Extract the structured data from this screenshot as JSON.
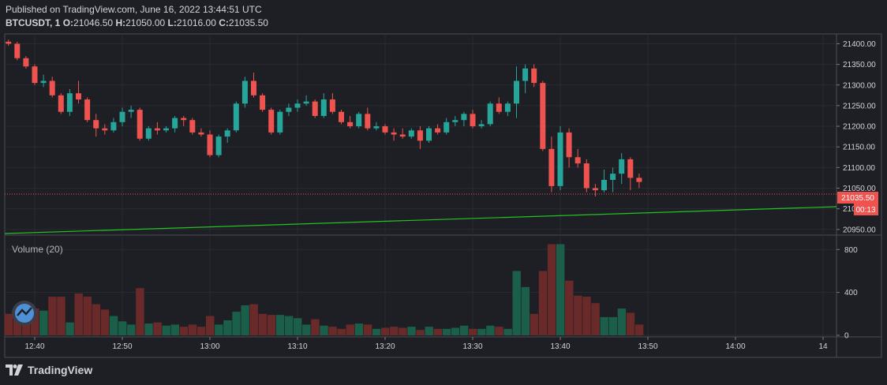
{
  "header": {
    "published": "Published on TradingView.com, June 16, 2022 13:44:51 UTC",
    "symbol": "BTCUSDT, 1",
    "ohlc": {
      "O": "21046.50",
      "H": "21050.00",
      "L": "21016.00",
      "C": "21035.50"
    },
    "o_label": "O:",
    "h_label": "H:",
    "l_label": "L:",
    "c_label": "C:"
  },
  "price_tag": "21035.50",
  "countdown_tag": "00:13",
  "volume_label": "Volume (20)",
  "brand": "TradingView",
  "colors": {
    "up": "#26a69a",
    "down": "#ef5350",
    "up_vol": "#1b5e4a",
    "down_vol": "#6b2a2a",
    "trend": "#22c322",
    "bg": "#1e1f24",
    "grid": "#2a2b31"
  },
  "chart_data": {
    "type": "candlestick",
    "price_ylim": [
      20940,
      21420
    ],
    "price_ticks": [
      "21400.00",
      "21350.00",
      "21300.00",
      "21250.00",
      "21200.00",
      "21150.00",
      "21100.00",
      "21050.00",
      "21000.00",
      "20950.00"
    ],
    "volume_ylim": [
      0,
      920
    ],
    "volume_ticks": [
      "800",
      "400",
      "0"
    ],
    "time_ticks": [
      {
        "label": "12:40",
        "minute": 0
      },
      {
        "label": "12:50",
        "minute": 10
      },
      {
        "label": "13:00",
        "minute": 20
      },
      {
        "label": "13:10",
        "minute": 30
      },
      {
        "label": "13:20",
        "minute": 40
      },
      {
        "label": "13:30",
        "minute": 50
      },
      {
        "label": "13:40",
        "minute": 60
      },
      {
        "label": "13:50",
        "minute": 70
      },
      {
        "label": "14:00",
        "minute": 80
      },
      {
        "label": "14",
        "minute": 90
      }
    ],
    "first_minute": -3,
    "candles": [
      [
        21405,
        21410,
        21395,
        21400,
        200
      ],
      [
        21400,
        21405,
        21360,
        21365,
        180
      ],
      [
        21365,
        21370,
        21340,
        21345,
        220
      ],
      [
        21345,
        21350,
        21300,
        21305,
        250
      ],
      [
        21305,
        21325,
        21295,
        21310,
        230
      ],
      [
        21310,
        21320,
        21270,
        21275,
        360
      ],
      [
        21275,
        21280,
        21230,
        21235,
        360
      ],
      [
        21235,
        21290,
        21225,
        21280,
        120
      ],
      [
        21280,
        21310,
        21255,
        21265,
        390
      ],
      [
        21265,
        21270,
        21210,
        21215,
        360
      ],
      [
        21215,
        21230,
        21175,
        21195,
        290
      ],
      [
        21195,
        21205,
        21180,
        21190,
        240
      ],
      [
        21190,
        21220,
        21185,
        21210,
        180
      ],
      [
        21210,
        21245,
        21200,
        21235,
        130
      ],
      [
        21235,
        21250,
        21220,
        21240,
        100
      ],
      [
        21240,
        21245,
        21165,
        21170,
        440
      ],
      [
        21170,
        21200,
        21165,
        21195,
        110
      ],
      [
        21195,
        21210,
        21180,
        21190,
        120
      ],
      [
        21190,
        21200,
        21185,
        21195,
        90
      ],
      [
        21195,
        21225,
        21185,
        21220,
        100
      ],
      [
        21220,
        21225,
        21200,
        21215,
        80
      ],
      [
        21215,
        21220,
        21180,
        21185,
        100
      ],
      [
        21185,
        21195,
        21175,
        21180,
        80
      ],
      [
        21180,
        21190,
        21125,
        21130,
        180
      ],
      [
        21130,
        21180,
        21125,
        21175,
        100
      ],
      [
        21175,
        21195,
        21160,
        21190,
        140
      ],
      [
        21190,
        21260,
        21185,
        21255,
        220
      ],
      [
        21255,
        21320,
        21245,
        21310,
        280
      ],
      [
        21310,
        21330,
        21270,
        21275,
        290
      ],
      [
        21275,
        21280,
        21235,
        21240,
        200
      ],
      [
        21240,
        21245,
        21180,
        21185,
        190
      ],
      [
        21185,
        21240,
        21180,
        21235,
        190
      ],
      [
        21235,
        21255,
        21225,
        21245,
        180
      ],
      [
        21245,
        21265,
        21235,
        21255,
        160
      ],
      [
        21255,
        21275,
        21250,
        21260,
        100
      ],
      [
        21260,
        21265,
        21220,
        21225,
        150
      ],
      [
        21225,
        21280,
        21220,
        21265,
        90
      ],
      [
        21265,
        21280,
        21230,
        21235,
        80
      ],
      [
        21235,
        21240,
        21205,
        21210,
        60
      ],
      [
        21210,
        21225,
        21195,
        21200,
        100
      ],
      [
        21200,
        21235,
        21195,
        21230,
        110
      ],
      [
        21230,
        21245,
        21190,
        21195,
        100
      ],
      [
        21195,
        21210,
        21190,
        21200,
        60
      ],
      [
        21200,
        21205,
        21180,
        21185,
        70
      ],
      [
        21185,
        21195,
        21165,
        21180,
        80
      ],
      [
        21180,
        21195,
        21170,
        21175,
        70
      ],
      [
        21175,
        21195,
        21170,
        21190,
        80
      ],
      [
        21190,
        21200,
        21145,
        21165,
        50
      ],
      [
        21165,
        21200,
        21160,
        21195,
        80
      ],
      [
        21195,
        21205,
        21180,
        21185,
        60
      ],
      [
        21185,
        21220,
        21180,
        21210,
        60
      ],
      [
        21210,
        21225,
        21200,
        21215,
        70
      ],
      [
        21215,
        21235,
        21200,
        21230,
        90
      ],
      [
        21230,
        21240,
        21195,
        21200,
        60
      ],
      [
        21200,
        21215,
        21195,
        21205,
        60
      ],
      [
        21205,
        21260,
        21200,
        21255,
        90
      ],
      [
        21255,
        21270,
        21230,
        21235,
        80
      ],
      [
        21235,
        21260,
        21225,
        21255,
        60
      ],
      [
        21255,
        21345,
        21220,
        21310,
        600
      ],
      [
        21310,
        21350,
        21280,
        21340,
        450
      ],
      [
        21340,
        21350,
        21295,
        21305,
        200
      ],
      [
        21305,
        21310,
        21140,
        21145,
        600
      ],
      [
        21145,
        21175,
        21040,
        21055,
        850
      ],
      [
        21055,
        21200,
        21045,
        21185,
        850
      ],
      [
        21185,
        21195,
        21100,
        21125,
        510
      ],
      [
        21125,
        21145,
        21100,
        21110,
        370
      ],
      [
        21110,
        21120,
        21040,
        21050,
        360
      ],
      [
        21050,
        21060,
        21030,
        21045,
        300
      ],
      [
        21045,
        21095,
        21040,
        21070,
        170
      ],
      [
        21070,
        21100,
        21040,
        21085,
        170
      ],
      [
        21085,
        21135,
        21060,
        21120,
        250
      ],
      [
        21120,
        21125,
        21045,
        21075,
        210
      ],
      [
        21075,
        21085,
        21050,
        21065,
        100
      ]
    ],
    "last_price": 21035.5,
    "trendline": {
      "start": {
        "minute": -3,
        "price": 20940
      },
      "end": {
        "minute": 95,
        "price": 21005
      }
    }
  }
}
